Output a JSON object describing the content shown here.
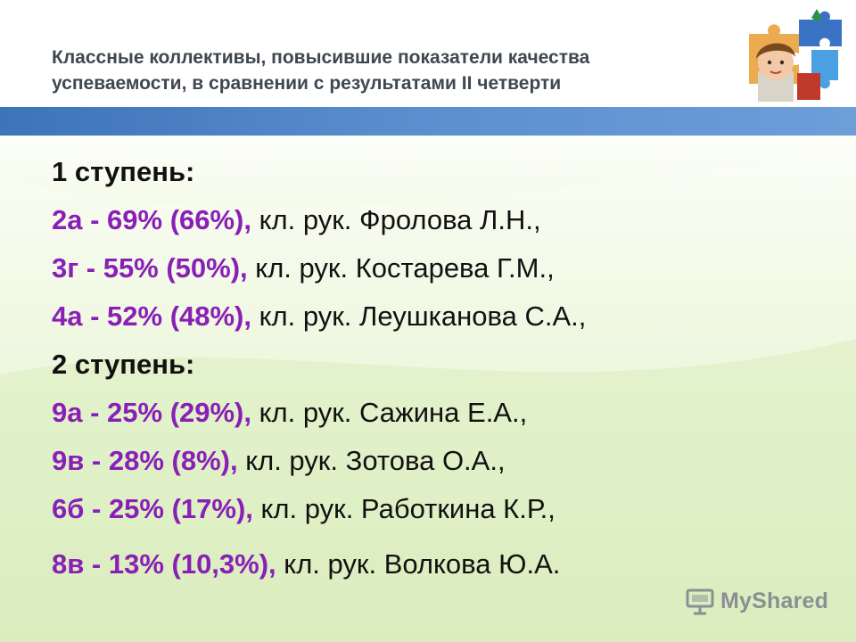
{
  "header": {
    "title_line1": "Классные коллективы, повысившие показатели качества",
    "title_line2": "успеваемости, в сравнении с результатами II четверти"
  },
  "content": {
    "level1": "1 ступень:",
    "level2": "2 ступень:",
    "rows": [
      {
        "cls": "2а - 69% (66%),",
        "rest": " кл. рук. Фролова Л.Н.,"
      },
      {
        "cls": "3г - 55% (50%),",
        "rest": " кл. рук. Костарева Г.М.,"
      },
      {
        "cls": "4а - 52% (48%),",
        "rest": " кл. рук. Леушканова С.А.,"
      },
      {
        "cls": "9а - 25% (29%),",
        "rest": " кл. рук. Сажина Е.А.,"
      },
      {
        "cls": "9в - 28% (8%),",
        "rest": " кл. рук. Зотова О.А.,"
      },
      {
        "cls": "6б - 25% (17%),",
        "rest": " кл. рук. Работкина К.Р.,"
      },
      {
        "cls": "8в - 13% (10,3%),",
        "rest": " кл. рук. Волкова Ю.А."
      }
    ]
  },
  "watermark": {
    "text": "MyShared",
    "icon": "presentation-board-icon"
  },
  "colors": {
    "accent": "#8a1fb7",
    "bar": "#4a80c4",
    "background": "#e4f2cf"
  },
  "decoration": {
    "icon": "puzzle-pieces-icon"
  }
}
